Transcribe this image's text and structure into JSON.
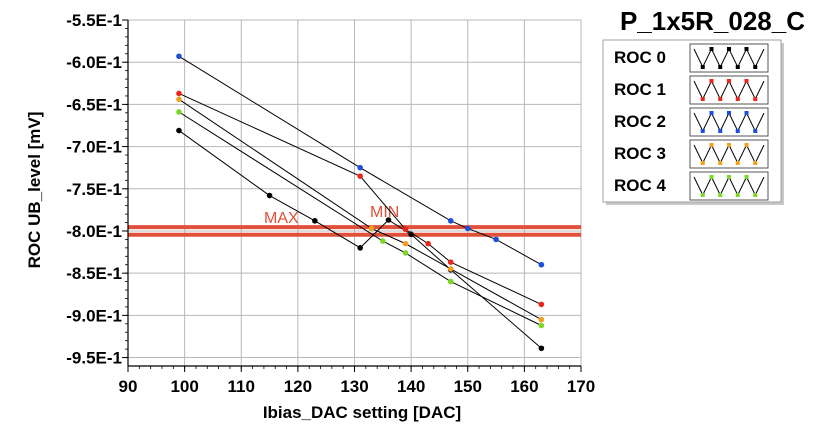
{
  "chart_data": {
    "type": "line",
    "title": "P_1x5R_028_C",
    "xlabel": "Ibias_DAC setting [DAC]",
    "ylabel": "ROC UB_level [mV]",
    "xlim": [
      90,
      170
    ],
    "ylim": [
      -0.96,
      -0.55
    ],
    "x_ticks": [
      "90",
      "100",
      "110",
      "120",
      "130",
      "140",
      "150",
      "160",
      "170"
    ],
    "y_ticks": [
      "-5.5E-1",
      "-6.0E-1",
      "-6.5E-1",
      "-7.0E-1",
      "-7.5E-1",
      "-8.0E-1",
      "-8.5E-1",
      "-9.0E-1",
      "-9.5E-1"
    ],
    "grid": true,
    "legend_position": "top-right",
    "limits": [
      {
        "label": "MAX",
        "value": -0.7955,
        "color": "#e0503a"
      },
      {
        "label": "MIN",
        "value": -0.8045,
        "color": "#e0503a"
      }
    ],
    "series": [
      {
        "name": "ROC 0",
        "color": "#000000",
        "x": [
          99,
          115,
          123,
          131,
          136,
          140,
          147,
          163
        ],
        "y": [
          -0.681,
          -0.758,
          -0.788,
          -0.82,
          -0.787,
          -0.804,
          -0.846,
          -0.939
        ]
      },
      {
        "name": "ROC 1",
        "color": "#e8261c",
        "x": [
          99,
          131,
          139,
          143,
          147,
          163
        ],
        "y": [
          -0.637,
          -0.735,
          -0.798,
          -0.815,
          -0.837,
          -0.887
        ]
      },
      {
        "name": "ROC 2",
        "color": "#1f4ed8",
        "x": [
          99,
          131,
          147,
          150,
          155,
          163
        ],
        "y": [
          -0.593,
          -0.725,
          -0.788,
          -0.797,
          -0.81,
          -0.84
        ]
      },
      {
        "name": "ROC 3",
        "color": "#f0a020",
        "x": [
          99,
          133,
          139,
          147,
          163
        ],
        "y": [
          -0.644,
          -0.797,
          -0.815,
          -0.845,
          -0.905
        ]
      },
      {
        "name": "ROC 4",
        "color": "#7cd62a",
        "x": [
          99,
          135,
          139,
          147,
          163
        ],
        "y": [
          -0.659,
          -0.812,
          -0.826,
          -0.86,
          -0.912
        ]
      }
    ]
  }
}
